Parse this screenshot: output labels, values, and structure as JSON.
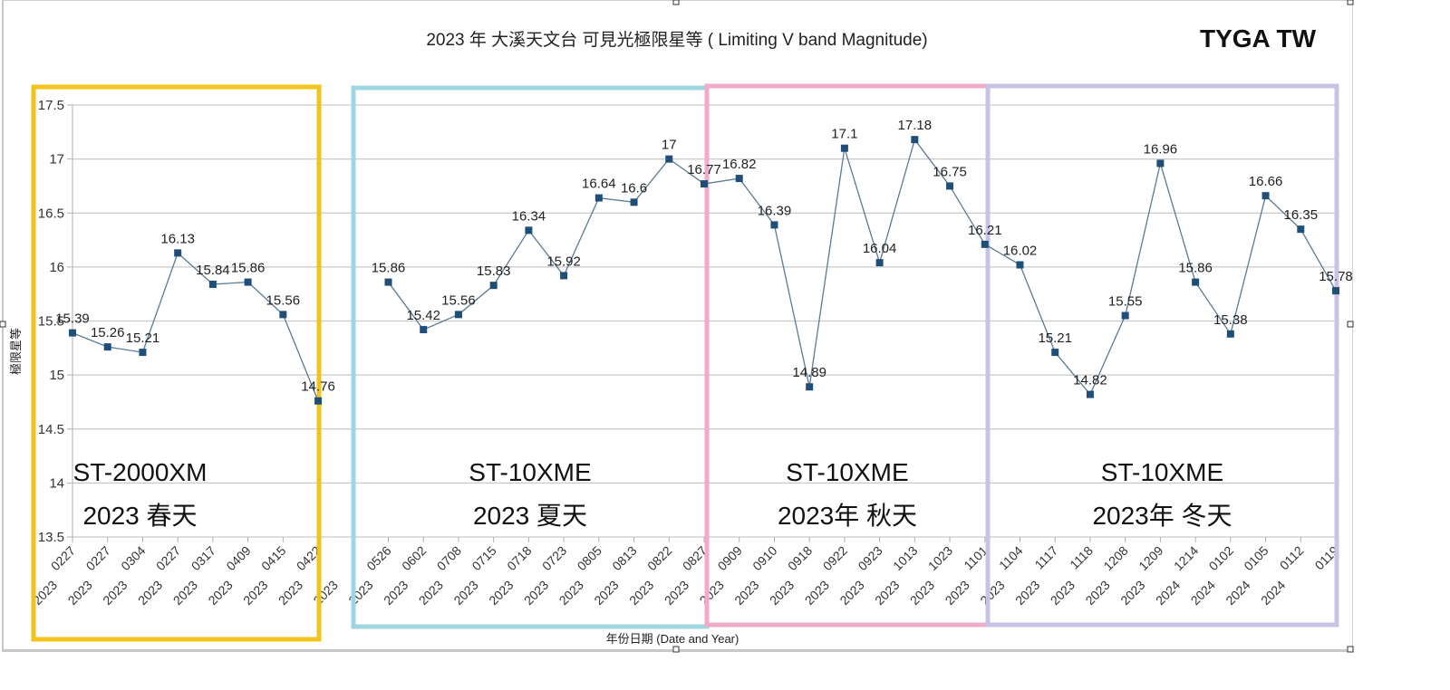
{
  "chart_data": {
    "type": "line",
    "title": "2023 年 大溪天文台 可見光極限星等 ( Limiting V band Magnitude)",
    "brand": "TYGA TW",
    "xlabel": "年份日期  (Date and Year)",
    "ylabel": "極限星等",
    "ylim": [
      13.5,
      17.5
    ],
    "yticks": [
      "13.5",
      "14",
      "14.5",
      "15",
      "15.5",
      "16",
      "16.5",
      "17",
      "17.5"
    ],
    "ytick_values": [
      13.5,
      14,
      14.5,
      15,
      15.5,
      16,
      16.5,
      17,
      17.5
    ],
    "grid": true,
    "legend": "none",
    "categories": [
      {
        "date": "0227",
        "year": "2023"
      },
      {
        "date": "0227",
        "year": "2023"
      },
      {
        "date": "0304",
        "year": "2023"
      },
      {
        "date": "0227",
        "year": "2023"
      },
      {
        "date": "0317",
        "year": "2023"
      },
      {
        "date": "0409",
        "year": "2023"
      },
      {
        "date": "0415",
        "year": "2023"
      },
      {
        "date": "0422",
        "year": "2023"
      },
      {
        "date": "",
        "year": "2023"
      },
      {
        "date": "0526",
        "year": "2023"
      },
      {
        "date": "0602",
        "year": "2023"
      },
      {
        "date": "0708",
        "year": "2023"
      },
      {
        "date": "0715",
        "year": "2023"
      },
      {
        "date": "0718",
        "year": "2023"
      },
      {
        "date": "0723",
        "year": "2023"
      },
      {
        "date": "0805",
        "year": "2023"
      },
      {
        "date": "0813",
        "year": "2023"
      },
      {
        "date": "0822",
        "year": "2023"
      },
      {
        "date": "0827",
        "year": "2023"
      },
      {
        "date": "0909",
        "year": "2023"
      },
      {
        "date": "0910",
        "year": "2023"
      },
      {
        "date": "0918",
        "year": "2023"
      },
      {
        "date": "0922",
        "year": "2023"
      },
      {
        "date": "0923",
        "year": "2023"
      },
      {
        "date": "1013",
        "year": "2023"
      },
      {
        "date": "1023",
        "year": "2023"
      },
      {
        "date": "1101",
        "year": "2023"
      },
      {
        "date": "1104",
        "year": "2023"
      },
      {
        "date": "1117",
        "year": "2023"
      },
      {
        "date": "1118",
        "year": "2023"
      },
      {
        "date": "1208",
        "year": "2023"
      },
      {
        "date": "1209",
        "year": "2023"
      },
      {
        "date": "1214",
        "year": "2024"
      },
      {
        "date": "0102",
        "year": "2024"
      },
      {
        "date": "0105",
        "year": "2024"
      },
      {
        "date": "0112",
        "year": "2024"
      },
      {
        "date": "0119",
        "year": ""
      }
    ],
    "series": [
      {
        "name": "Limiting V band Magnitude",
        "color": "#1f4e79",
        "values": [
          15.39,
          15.26,
          15.21,
          16.13,
          15.84,
          15.86,
          15.56,
          14.76,
          null,
          15.86,
          15.42,
          15.56,
          15.83,
          16.34,
          15.92,
          16.64,
          16.6,
          17,
          16.77,
          16.82,
          16.39,
          14.89,
          17.1,
          16.04,
          17.18,
          16.75,
          16.21,
          16.02,
          15.21,
          14.82,
          15.55,
          16.96,
          15.86,
          15.38,
          16.66,
          16.35,
          15.78
        ],
        "labels": [
          "15.39",
          "15.26",
          "15.21",
          "16.13",
          "15.84",
          "15.86",
          "15.56",
          "14.76",
          "",
          "15.86",
          "15.42",
          "15.56",
          "15.83",
          "16.34",
          "15.92",
          "16.64",
          "16.6",
          "17",
          "16.77",
          "16.82",
          "16.39",
          "14.89",
          "17.1",
          "16.04",
          "17.18",
          "16.75",
          "16.21",
          "16.02",
          "15.21",
          "14.82",
          "15.55",
          "16.96",
          "15.86",
          "15.38",
          "16.66",
          "16.35",
          "15.78"
        ]
      }
    ],
    "annotations": [
      {
        "instrument": "ST-2000XM",
        "season": "2023 春天",
        "color": "#f2c31b",
        "from_index": 0,
        "to_index": 7
      },
      {
        "instrument": "ST-10XME",
        "season": "2023  夏天",
        "color": "#9fd6e2",
        "from_index": 8,
        "to_index": 18
      },
      {
        "instrument": "ST-10XME",
        "season": "2023年   秋天",
        "color": "#f0abc9",
        "from_index": 18,
        "to_index": 26
      },
      {
        "instrument": "ST-10XME",
        "season": "2023年    冬天",
        "color": "#c7c3e6",
        "from_index": 26,
        "to_index": 36
      }
    ]
  }
}
